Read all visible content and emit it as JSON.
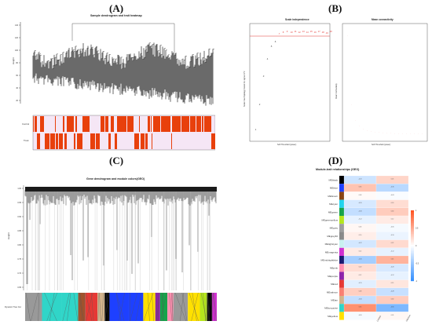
{
  "panels": {
    "a": {
      "letter": "(A)",
      "title": "Sample dendrogram and trait heatmap",
      "ylabel": "Height",
      "yticks": [
        "140",
        "120",
        "100",
        "80",
        "60",
        "40",
        "20"
      ],
      "trait_rows": [
        "Control",
        "Treat"
      ]
    },
    "b": {
      "letter": "(B)",
      "left_title": "Scale independence",
      "right_title": "Mean connectivity",
      "left_ylabel": "Scale Free Topology Model Fit, signed R^2",
      "right_ylabel": "Mean Connectivity",
      "xlabel": "Soft Threshold (power)",
      "cutoff_line_color": "#e53935"
    },
    "c": {
      "letter": "(C)",
      "title": "Gene dendrogram and module colors(GEO)",
      "ylabel": "Height",
      "yticks": [
        "1.00",
        "0.95",
        "0.90",
        "0.85",
        "0.80",
        "0.75",
        "0.70",
        "0.65"
      ],
      "color_bar_label": "Dynamic Tree Cut"
    },
    "d": {
      "letter": "(D)",
      "title": "Module-trait relationships (GEO)",
      "columns": [
        "Control",
        "Infection"
      ],
      "legend_ticks": [
        "1",
        "0.5",
        "0",
        "-0.5",
        "-1"
      ],
      "modules": [
        {
          "name": "MEblack",
          "color": "#000000"
        },
        {
          "name": "MEblue",
          "color": "#1e40ff"
        },
        {
          "name": "MEbrown",
          "color": "#8b4513"
        },
        {
          "name": "MEcyan",
          "color": "#22d3ee"
        },
        {
          "name": "MEgreen",
          "color": "#16a34a"
        },
        {
          "name": "MEgreenyellow",
          "color": "#b5e61d"
        },
        {
          "name": "MEgrey",
          "color": "#9e9e9e"
        },
        {
          "name": "MEgrey60",
          "color": "#8a8a8a"
        },
        {
          "name": "MElightcyan",
          "color": "#c8f0f0"
        },
        {
          "name": "MEmagenta",
          "color": "#d030d0"
        },
        {
          "name": "MEmidnightblue",
          "color": "#1a1a70"
        },
        {
          "name": "MEpink",
          "color": "#ff8fb0"
        },
        {
          "name": "MEpurple",
          "color": "#8e24aa"
        },
        {
          "name": "MEred",
          "color": "#e53935"
        },
        {
          "name": "MEsalmon",
          "color": "#fa8072"
        },
        {
          "name": "MEtan",
          "color": "#d2b48c"
        },
        {
          "name": "MEturquoise",
          "color": "#30d5c8"
        },
        {
          "name": "MEyellow",
          "color": "#ffe000"
        }
      ],
      "cells": [
        [
          -0.25,
          0.25
        ],
        [
          0.35,
          -0.35
        ],
        [
          0.03,
          -0.03
        ],
        [
          -0.2,
          0.2
        ],
        [
          -0.3,
          0.3
        ],
        [
          -0.12,
          0.12
        ],
        [
          0.05,
          -0.05
        ],
        [
          0.1,
          -0.1
        ],
        [
          -0.22,
          0.22
        ],
        [
          0.12,
          -0.12
        ],
        [
          -0.45,
          0.45
        ],
        [
          0.2,
          -0.2
        ],
        [
          0.12,
          -0.12
        ],
        [
          -0.15,
          0.15
        ],
        [
          0.28,
          -0.28
        ],
        [
          -0.3,
          0.3
        ],
        [
          0.65,
          -0.65
        ],
        [
          -0.05,
          0.05
        ]
      ]
    }
  }
}
